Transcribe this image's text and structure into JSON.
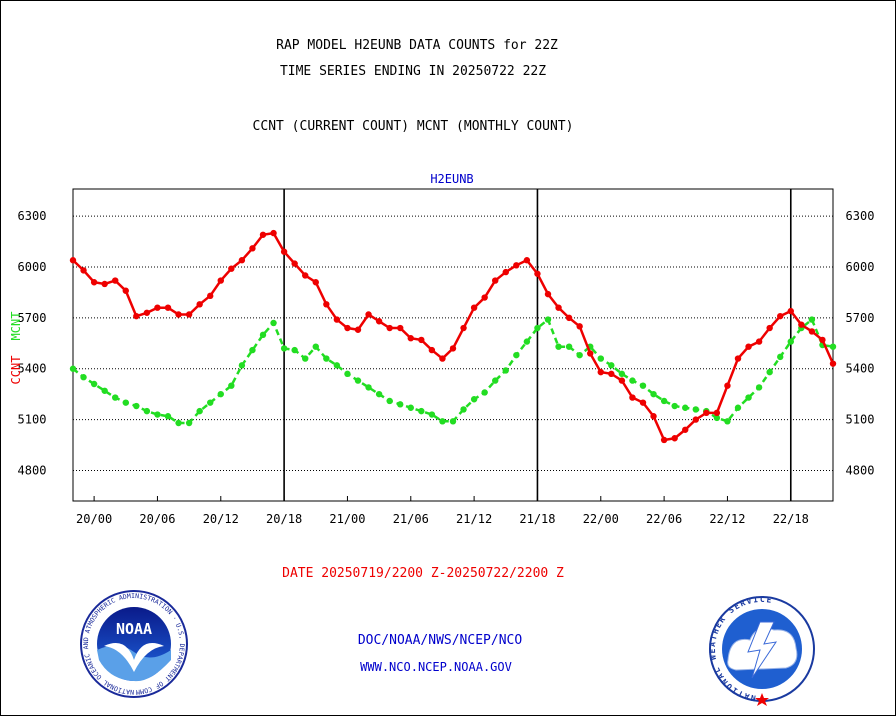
{
  "header": {
    "title_line1": "RAP MODEL H2EUNB DATA COUNTS for 22Z",
    "title_line2": "TIME SERIES ENDING IN 20250722 22Z",
    "legend_line": "CCNT (CURRENT COUNT) MCNT (MONTHLY COUNT)"
  },
  "footer": {
    "date_range": "DATE 20250719/2200 Z-20250722/2200 Z",
    "org": "DOC/NOAA/NWS/NCEP/NCO",
    "url": "WWW.NCO.NCEP.NOAA.GOV",
    "noaa_logo_text": "NOAA",
    "noaa_ring_text": "NATIONAL OCEANIC AND ATMOSPHERIC ADMINISTRATION · U.S. DEPARTMENT OF COMMERCE",
    "nws_ring_text": "NATIONAL WEATHER SERVICE"
  },
  "colors": {
    "ccnt": "#ee0000",
    "mcnt": "#22dd22",
    "subtitle": "#0000cc",
    "footer_red": "#ee0000",
    "footer_blue": "#0000cc"
  },
  "chart_data": {
    "type": "line",
    "subtitle": "H2EUNB",
    "ylabel_ccnt": "CCNT",
    "ylabel_mcnt": "MCNT",
    "ylim": [
      4620,
      6460
    ],
    "yticks": [
      4800,
      5100,
      5400,
      5700,
      6000,
      6300
    ],
    "ytick_labels": [
      "4800",
      "5100",
      "5400",
      "5700",
      "6000",
      "6300"
    ],
    "xlim": [
      0,
      72
    ],
    "xticks": [
      2,
      8,
      14,
      20,
      26,
      32,
      38,
      44,
      50,
      56,
      62,
      68
    ],
    "xtick_labels": [
      "20/00",
      "20/06",
      "20/12",
      "20/18",
      "21/00",
      "21/06",
      "21/12",
      "21/18",
      "22/00",
      "22/06",
      "22/12",
      "22/18"
    ],
    "day_boundaries": [
      20,
      44,
      68
    ],
    "grid": true,
    "x": [
      0,
      1,
      2,
      3,
      4,
      5,
      6,
      7,
      8,
      9,
      10,
      11,
      12,
      13,
      14,
      15,
      16,
      17,
      18,
      19,
      20,
      21,
      22,
      23,
      24,
      25,
      26,
      27,
      28,
      29,
      30,
      31,
      32,
      33,
      34,
      35,
      36,
      37,
      38,
      39,
      40,
      41,
      42,
      43,
      44,
      45,
      46,
      47,
      48,
      49,
      50,
      51,
      52,
      53,
      54,
      55,
      56,
      57,
      58,
      59,
      60,
      61,
      62,
      63,
      64,
      65,
      66,
      67,
      68,
      69,
      70,
      71,
      72
    ],
    "series": [
      {
        "name": "CCNT",
        "color": "#ee0000",
        "values": [
          6040,
          5980,
          5910,
          5900,
          5920,
          5860,
          5710,
          5730,
          5760,
          5760,
          5720,
          5720,
          5780,
          5830,
          5920,
          5990,
          6040,
          6110,
          6190,
          6200,
          6090,
          6020,
          5950,
          5910,
          5780,
          5690,
          5640,
          5630,
          5720,
          5680,
          5640,
          5640,
          5580,
          5570,
          5510,
          5460,
          5520,
          5640,
          5760,
          5820,
          5920,
          5970,
          6010,
          6040,
          5960,
          5840,
          5760,
          5700,
          5650,
          5490,
          5380,
          5370,
          5330,
          5230,
          5200,
          5120,
          4980,
          4990,
          5040,
          5100,
          5140,
          5140,
          5300,
          5460,
          5530,
          5560,
          5640,
          5710,
          5740,
          5660,
          5620,
          5570,
          5430
        ]
      },
      {
        "name": "MCNT",
        "color": "#22dd22",
        "values": [
          5400,
          5350,
          5310,
          5270,
          5230,
          5200,
          5180,
          5150,
          5130,
          5120,
          5080,
          5080,
          5150,
          5200,
          5250,
          5300,
          5420,
          5510,
          5600,
          5670,
          5520,
          5510,
          5460,
          5530,
          5460,
          5420,
          5370,
          5330,
          5290,
          5250,
          5210,
          5190,
          5170,
          5150,
          5130,
          5090,
          5090,
          5160,
          5220,
          5260,
          5330,
          5390,
          5480,
          5560,
          5640,
          5690,
          5530,
          5530,
          5480,
          5530,
          5460,
          5420,
          5370,
          5330,
          5300,
          5250,
          5210,
          5180,
          5170,
          5160,
          5150,
          5110,
          5090,
          5170,
          5230,
          5290,
          5380,
          5470,
          5560,
          5640,
          5690,
          5540,
          5530
        ]
      }
    ]
  }
}
